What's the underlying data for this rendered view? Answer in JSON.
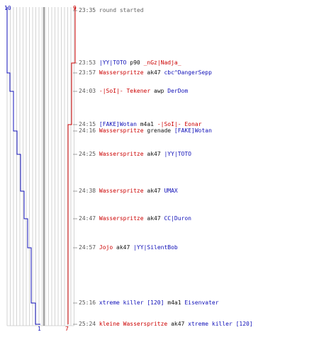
{
  "scores": {
    "ct_start": "10",
    "t_start": "9",
    "ct_end": "1",
    "t_end": "7"
  },
  "colors": {
    "ct": "#1010b8",
    "t": "#cc0000",
    "grid": "#c8c8c8",
    "center_line": "#555555",
    "time": "#555555"
  },
  "events": [
    {
      "time": "23:35",
      "text": "round started"
    },
    {
      "time": "23:53",
      "killer": "|YY|TOTO",
      "killer_team": "ct",
      "weapon": "p90",
      "victim": "_nGz|Nadja_",
      "victim_team": "t"
    },
    {
      "time": "23:57",
      "killer": "Wasserspritze",
      "killer_team": "t",
      "weapon": "ak47",
      "victim": "cbc^DangerSepp",
      "victim_team": "ct"
    },
    {
      "time": "24:03",
      "killer": "-|SoI|- Tekener",
      "killer_team": "t",
      "weapon": "awp",
      "victim": "DerDom",
      "victim_team": "ct"
    },
    {
      "time": "24:15",
      "killer": "[FAKE]Wotan",
      "killer_team": "ct",
      "weapon": "m4a1",
      "victim": "-|SoI|- Eonar",
      "victim_team": "t"
    },
    {
      "time": "24:16",
      "killer": "Wasserspritze",
      "killer_team": "t",
      "weapon": "grenade",
      "victim": "[FAKE]Wotan",
      "victim_team": "ct"
    },
    {
      "time": "24:25",
      "killer": "Wasserspritze",
      "killer_team": "t",
      "weapon": "ak47",
      "victim": "|YY|TOTO",
      "victim_team": "ct"
    },
    {
      "time": "24:38",
      "killer": "Wasserspritze",
      "killer_team": "t",
      "weapon": "ak47",
      "victim": "UMAX",
      "victim_team": "ct"
    },
    {
      "time": "24:47",
      "killer": "Wasserspritze",
      "killer_team": "t",
      "weapon": "ak47",
      "victim": "CC|Duron",
      "victim_team": "ct"
    },
    {
      "time": "24:57",
      "killer": "Jojo",
      "killer_team": "t",
      "weapon": "ak47",
      "victim": "|YY|SilentBob",
      "victim_team": "ct"
    },
    {
      "time": "25:16",
      "killer": "xtreme killer [120]",
      "killer_team": "ct",
      "weapon": "m4a1",
      "victim": "Eisenvater",
      "victim_team": "ct"
    },
    {
      "time": "25:24",
      "killer": "kleine Wasserspritze",
      "killer_team": "t",
      "weapon": "ak47",
      "victim": "xtreme killer [120]",
      "victim_team": "ct"
    }
  ]
}
